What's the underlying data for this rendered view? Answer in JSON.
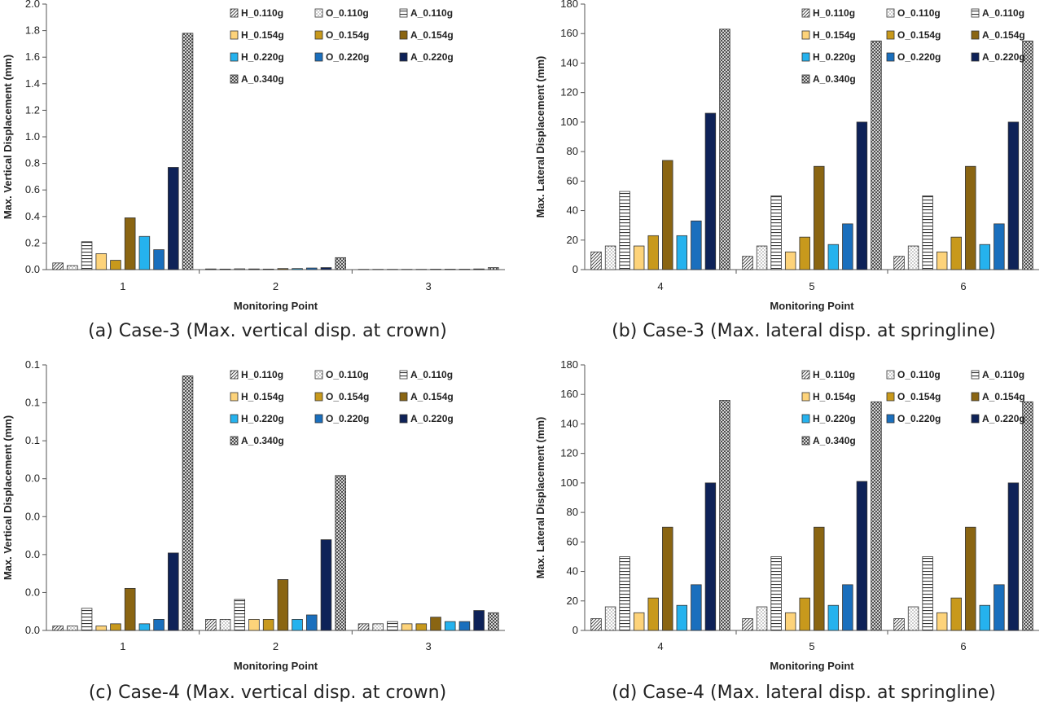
{
  "colors": {
    "H_0.154g": "#fdd37a",
    "O_0.154g": "#c8991c",
    "A_0.154g": "#8a6512",
    "H_0.220g": "#25b2ee",
    "O_0.220g": "#1a6fbd",
    "A_0.220g": "#0e2258",
    "pattern": "#333333"
  },
  "chart_data": [
    {
      "type": "bar",
      "caption": "(a) Case-3 (Max. vertical disp. at crown)",
      "xlabel": "Monitoring Point",
      "ylabel": "Max. Vertical Displacement (mm)",
      "ylim": [
        0,
        2.0
      ],
      "yticks": [
        "0.0",
        "0.2",
        "0.4",
        "0.6",
        "0.8",
        "1.0",
        "1.2",
        "1.4",
        "1.6",
        "1.8",
        "2.0"
      ],
      "categories": [
        "1",
        "2",
        "3"
      ],
      "legend_position": "top-right",
      "series": [
        {
          "name": "H_0.110g",
          "values": [
            0.05,
            0.005,
            0.002
          ]
        },
        {
          "name": "O_0.110g",
          "values": [
            0.03,
            0.004,
            0.002
          ]
        },
        {
          "name": "A_0.110g",
          "values": [
            0.21,
            0.006,
            0.002
          ]
        },
        {
          "name": "H_0.154g",
          "values": [
            0.12,
            0.005,
            0.002
          ]
        },
        {
          "name": "O_0.154g",
          "values": [
            0.07,
            0.004,
            0.002
          ]
        },
        {
          "name": "A_0.154g",
          "values": [
            0.39,
            0.008,
            0.003
          ]
        },
        {
          "name": "H_0.220g",
          "values": [
            0.25,
            0.008,
            0.003
          ]
        },
        {
          "name": "O_0.220g",
          "values": [
            0.15,
            0.012,
            0.003
          ]
        },
        {
          "name": "A_0.220g",
          "values": [
            0.77,
            0.015,
            0.005
          ]
        },
        {
          "name": "A_0.340g",
          "values": [
            1.78,
            0.09,
            0.015
          ]
        }
      ]
    },
    {
      "type": "bar",
      "caption": "(b) Case-3 (Max. lateral disp. at springline)",
      "xlabel": "Monitoring Point",
      "ylabel": "Max. Lateral Displacement (mm)",
      "ylim": [
        0,
        180
      ],
      "yticks": [
        "0",
        "20",
        "40",
        "60",
        "80",
        "100",
        "120",
        "140",
        "160",
        "180"
      ],
      "categories": [
        "4",
        "5",
        "6"
      ],
      "legend_position": "top-right",
      "series": [
        {
          "name": "H_0.110g",
          "values": [
            12,
            9,
            9
          ]
        },
        {
          "name": "O_0.110g",
          "values": [
            16,
            16,
            16
          ]
        },
        {
          "name": "A_0.110g",
          "values": [
            53,
            50,
            50
          ]
        },
        {
          "name": "H_0.154g",
          "values": [
            16,
            12,
            12
          ]
        },
        {
          "name": "O_0.154g",
          "values": [
            23,
            22,
            22
          ]
        },
        {
          "name": "A_0.154g",
          "values": [
            74,
            70,
            70
          ]
        },
        {
          "name": "H_0.220g",
          "values": [
            23,
            17,
            17
          ]
        },
        {
          "name": "O_0.220g",
          "values": [
            33,
            31,
            31
          ]
        },
        {
          "name": "A_0.220g",
          "values": [
            106,
            100,
            100
          ]
        },
        {
          "name": "A_0.340g",
          "values": [
            163,
            155,
            155
          ]
        }
      ]
    },
    {
      "type": "bar",
      "caption": "(c) Case-4 (Max. vertical disp. at crown)",
      "xlabel": "Monitoring Point",
      "ylabel": "Max. Vertical Displacement (mm)",
      "ylim": [
        0,
        0.12
      ],
      "yticks": [
        "0.0",
        "0.0",
        "0.0",
        "0.0",
        "0.0",
        "0.1",
        "0.1",
        "0.1"
      ],
      "categories": [
        "1",
        "2",
        "3"
      ],
      "legend_position": "top-right",
      "series": [
        {
          "name": "H_0.110g",
          "values": [
            0.002,
            0.005,
            0.003
          ]
        },
        {
          "name": "O_0.110g",
          "values": [
            0.002,
            0.005,
            0.003
          ]
        },
        {
          "name": "A_0.110g",
          "values": [
            0.01,
            0.014,
            0.004
          ]
        },
        {
          "name": "H_0.154g",
          "values": [
            0.002,
            0.005,
            0.003
          ]
        },
        {
          "name": "O_0.154g",
          "values": [
            0.003,
            0.005,
            0.003
          ]
        },
        {
          "name": "A_0.154g",
          "values": [
            0.019,
            0.023,
            0.006
          ]
        },
        {
          "name": "H_0.220g",
          "values": [
            0.003,
            0.005,
            0.004
          ]
        },
        {
          "name": "O_0.220g",
          "values": [
            0.005,
            0.007,
            0.004
          ]
        },
        {
          "name": "A_0.220g",
          "values": [
            0.035,
            0.041,
            0.009
          ]
        },
        {
          "name": "A_0.340g",
          "values": [
            0.115,
            0.07,
            0.008
          ]
        }
      ]
    },
    {
      "type": "bar",
      "caption": "(d) Case-4 (Max. lateral disp. at springline)",
      "xlabel": "Monitoring Point",
      "ylabel": "Max. Lateral Displacement (mm)",
      "ylim": [
        0,
        180
      ],
      "yticks": [
        "0",
        "20",
        "40",
        "60",
        "80",
        "100",
        "120",
        "140",
        "160",
        "180"
      ],
      "categories": [
        "4",
        "5",
        "6"
      ],
      "legend_position": "top-right",
      "series": [
        {
          "name": "H_0.110g",
          "values": [
            8,
            8,
            8
          ]
        },
        {
          "name": "O_0.110g",
          "values": [
            16,
            16,
            16
          ]
        },
        {
          "name": "A_0.110g",
          "values": [
            50,
            50,
            50
          ]
        },
        {
          "name": "H_0.154g",
          "values": [
            12,
            12,
            12
          ]
        },
        {
          "name": "O_0.154g",
          "values": [
            22,
            22,
            22
          ]
        },
        {
          "name": "A_0.154g",
          "values": [
            70,
            70,
            70
          ]
        },
        {
          "name": "H_0.220g",
          "values": [
            17,
            17,
            17
          ]
        },
        {
          "name": "O_0.220g",
          "values": [
            31,
            31,
            31
          ]
        },
        {
          "name": "A_0.220g",
          "values": [
            100,
            101,
            100
          ]
        },
        {
          "name": "A_0.340g",
          "values": [
            156,
            155,
            155
          ]
        }
      ]
    }
  ]
}
